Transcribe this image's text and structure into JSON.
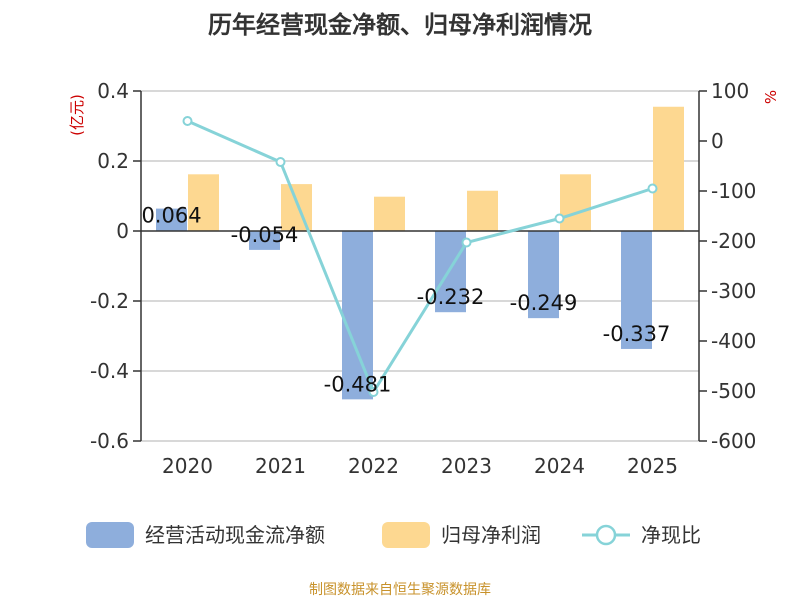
{
  "chart_data": {
    "type": "bar+line",
    "title": "历年经营现金净额、归母净利润情况",
    "categories": [
      "2020",
      "2021",
      "2022",
      "2023",
      "2024",
      "2025"
    ],
    "series": [
      {
        "name": "经营活动现金流净额",
        "type": "bar",
        "axis": "left",
        "values": [
          0.064,
          -0.054,
          -0.481,
          -0.232,
          -0.249,
          -0.337
        ],
        "labels": [
          "0.064",
          "-0.054",
          "-0.481",
          "-0.232",
          "-0.249",
          "-0.337"
        ]
      },
      {
        "name": "归母净利润",
        "type": "bar",
        "axis": "left",
        "values": [
          0.162,
          0.134,
          0.098,
          0.115,
          0.162,
          0.355
        ]
      },
      {
        "name": "净现比",
        "type": "line",
        "axis": "right",
        "values": [
          40,
          -42,
          -502,
          -203,
          -155,
          -95
        ]
      }
    ],
    "y_left": {
      "unit": "(亿元)",
      "range": [
        -0.6,
        0.4
      ],
      "ticks": [
        "-0.6",
        "-0.4",
        "-0.2",
        "0",
        "0.2",
        "0.4"
      ]
    },
    "y_right": {
      "unit": "%",
      "range": [
        -600,
        100
      ],
      "ticks": [
        "-600",
        "-500",
        "-400",
        "-300",
        "-200",
        "-100",
        "0",
        "100"
      ]
    },
    "grid": true,
    "legend_position": "bottom",
    "colors": {
      "cash_bar": "#8eaedc",
      "profit_bar": "#fdd891",
      "ratio_line": "#86d3d8",
      "unit_red": "#cc0000",
      "source_text": "#c8922b",
      "axis": "#333333",
      "grid": "#cccccc"
    }
  },
  "source_note": "制图数据来自恒生聚源数据库"
}
